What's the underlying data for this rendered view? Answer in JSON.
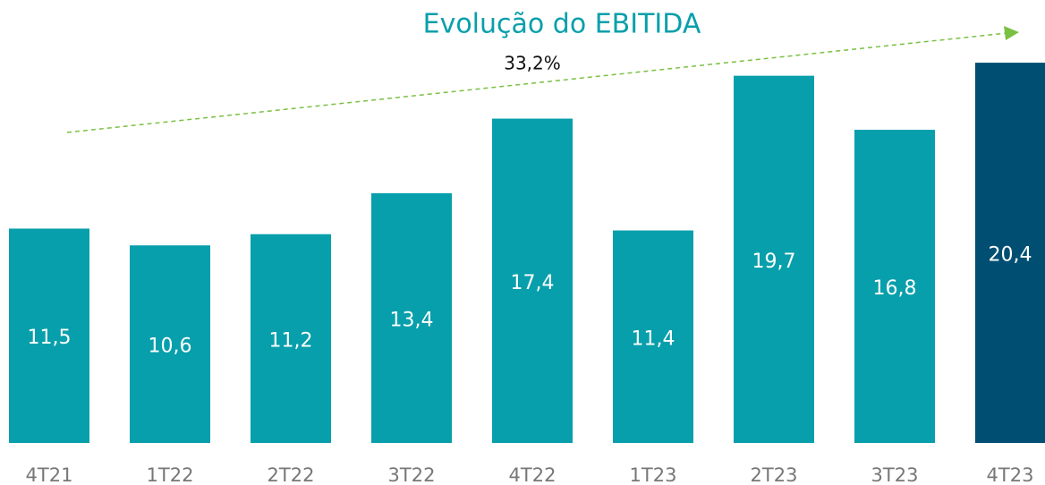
{
  "chart_data": {
    "type": "bar",
    "title": "Evolução do EBITIDA",
    "annotation": "33,2%",
    "categories": [
      "4T21",
      "1T22",
      "2T22",
      "3T22",
      "4T22",
      "1T23",
      "2T23",
      "3T23",
      "4T23"
    ],
    "values": [
      11.5,
      10.6,
      11.2,
      13.4,
      17.4,
      11.4,
      19.7,
      16.8,
      20.4
    ],
    "value_labels": [
      "11,5",
      "10,6",
      "11,2",
      "13,4",
      "17,4",
      "11,4",
      "19,7",
      "16,8",
      "20,4"
    ],
    "colors": [
      "#079fab",
      "#079fab",
      "#079fab",
      "#079fab",
      "#079fab",
      "#079fab",
      "#079fab",
      "#079fab",
      "#004f72"
    ]
  }
}
